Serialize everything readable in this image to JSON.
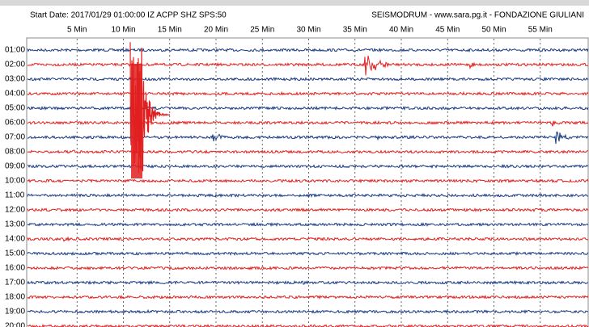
{
  "header": {
    "start": "Start Date: 2017/01/29 01:00:00 IZ ACPP SHZ SPS:50",
    "source": "SEISMODRUM - www.sara.pg.it - FONDAZIONE GIULIANI"
  },
  "minute_labels": [
    "5 Min",
    "10 Min",
    "15 Min",
    "20 Min",
    "25 Min",
    "30 Min",
    "35 Min",
    "40 Min",
    "45 Min",
    "50 Min",
    "55 Min"
  ],
  "hour_labels": [
    "01:00",
    "02:00",
    "03:00",
    "04:00",
    "05:00",
    "06:00",
    "07:00",
    "08:00",
    "09:00",
    "10:00",
    "11:00",
    "12:00",
    "13:00",
    "14:00",
    "15:00",
    "16:00",
    "17:00",
    "18:00",
    "19:00",
    "20:00"
  ]
}
